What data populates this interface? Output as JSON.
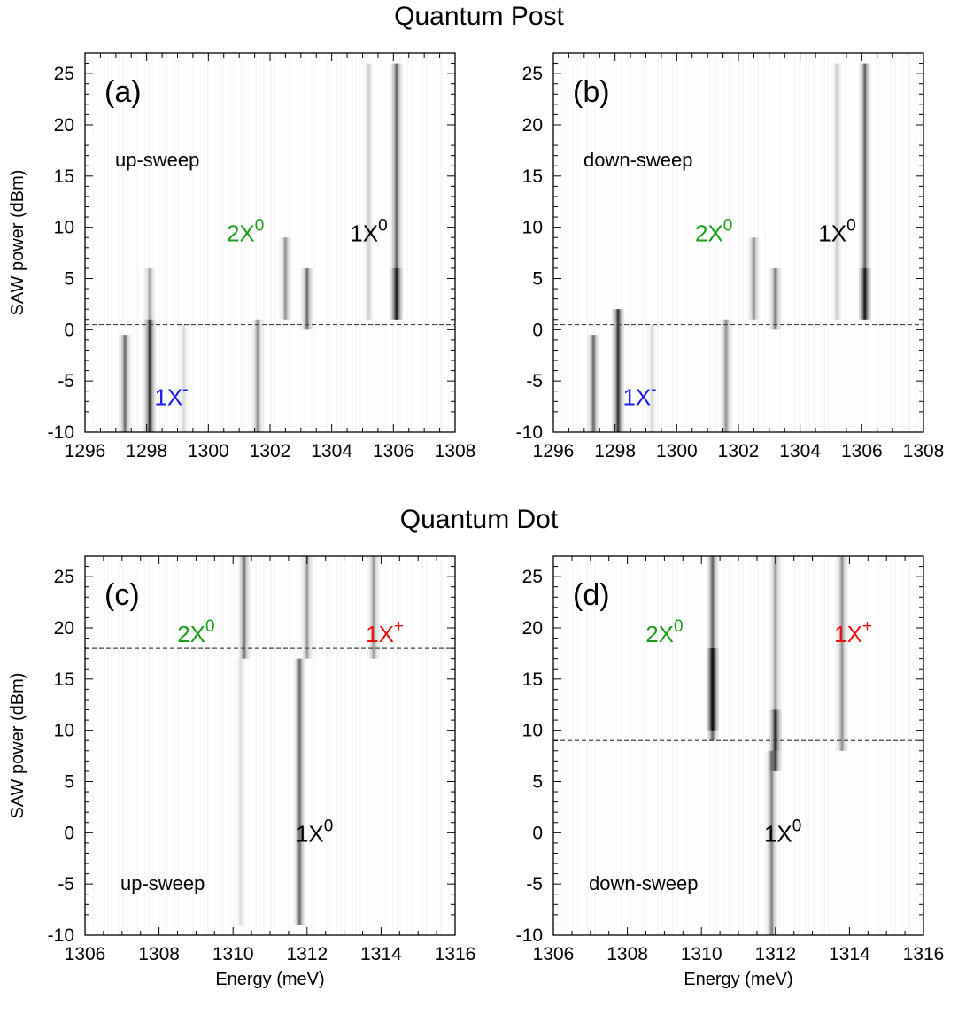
{
  "sections": {
    "top_title": "Quantum Post",
    "bottom_title": "Quantum Dot"
  },
  "colors": {
    "green": "#1a9e1a",
    "blue": "#1a1aee",
    "red": "#ee1111",
    "black": "#000000"
  },
  "chart_data": [
    {
      "type": "heatmap",
      "panel": "(a)",
      "sweep": "up-sweep",
      "ylabel": "SAW power (dBm)",
      "xlabel": "",
      "xlim": [
        1296,
        1308
      ],
      "ylim": [
        -10,
        27
      ],
      "xticks": [
        "1296",
        "1298",
        "1300",
        "1302",
        "1304",
        "1306",
        "1308"
      ],
      "yticks": [
        "-10",
        "-5",
        "0",
        "5",
        "10",
        "15",
        "20",
        "25"
      ],
      "threshold_dbm": 0.5,
      "annotations": [
        {
          "base": "2X",
          "sup": "0",
          "color": "green",
          "x": 1301.2,
          "y": 9.5
        },
        {
          "base": "1X",
          "sup": "0",
          "color": "black",
          "x": 1305.2,
          "y": 9.5
        },
        {
          "base": "1X",
          "sup": "-",
          "color": "blue",
          "x": 1298.8,
          "y": -6.5
        }
      ],
      "lines": [
        {
          "energy": 1297.3,
          "p_from": -10,
          "p_to": -0.5,
          "intensity": 0.55
        },
        {
          "energy": 1298.1,
          "p_from": -10,
          "p_to": 1,
          "intensity": 0.9
        },
        {
          "energy": 1298.1,
          "p_from": 1,
          "p_to": 6,
          "intensity": 0.3
        },
        {
          "energy": 1299.2,
          "p_from": -10,
          "p_to": 0.5,
          "intensity": 0.12
        },
        {
          "energy": 1301.6,
          "p_from": -10,
          "p_to": 1,
          "intensity": 0.38
        },
        {
          "energy": 1302.5,
          "p_from": 1,
          "p_to": 9,
          "intensity": 0.38
        },
        {
          "energy": 1303.2,
          "p_from": 0,
          "p_to": 6,
          "intensity": 0.55
        },
        {
          "energy": 1305.2,
          "p_from": 1,
          "p_to": 26,
          "intensity": 0.15
        },
        {
          "energy": 1306.1,
          "p_from": 1,
          "p_to": 26,
          "intensity": 0.6
        },
        {
          "energy": 1306.1,
          "p_from": 1,
          "p_to": 6,
          "intensity": 0.75
        }
      ]
    },
    {
      "type": "heatmap",
      "panel": "(b)",
      "sweep": "down-sweep",
      "ylabel": "",
      "xlabel": "",
      "xlim": [
        1296,
        1308
      ],
      "ylim": [
        -10,
        27
      ],
      "xticks": [
        "1296",
        "1298",
        "1300",
        "1302",
        "1304",
        "1306",
        "1308"
      ],
      "yticks": [
        "-10",
        "-5",
        "0",
        "5",
        "10",
        "15",
        "20",
        "25"
      ],
      "threshold_dbm": 0.5,
      "annotations": [
        {
          "base": "2X",
          "sup": "0",
          "color": "green",
          "x": 1301.2,
          "y": 9.5
        },
        {
          "base": "1X",
          "sup": "0",
          "color": "black",
          "x": 1305.2,
          "y": 9.5
        },
        {
          "base": "1X",
          "sup": "-",
          "color": "blue",
          "x": 1298.8,
          "y": -6.5
        }
      ],
      "lines": [
        {
          "energy": 1297.3,
          "p_from": -10,
          "p_to": -0.5,
          "intensity": 0.55
        },
        {
          "energy": 1298.1,
          "p_from": -10,
          "p_to": 2,
          "intensity": 0.9
        },
        {
          "energy": 1299.2,
          "p_from": -10,
          "p_to": 0.5,
          "intensity": 0.12
        },
        {
          "energy": 1301.6,
          "p_from": -10,
          "p_to": 1,
          "intensity": 0.38
        },
        {
          "energy": 1302.5,
          "p_from": 1,
          "p_to": 9,
          "intensity": 0.38
        },
        {
          "energy": 1303.2,
          "p_from": 0,
          "p_to": 6,
          "intensity": 0.5
        },
        {
          "energy": 1305.2,
          "p_from": 1,
          "p_to": 26,
          "intensity": 0.15
        },
        {
          "energy": 1306.1,
          "p_from": 1,
          "p_to": 26,
          "intensity": 0.6
        },
        {
          "energy": 1306.1,
          "p_from": 1,
          "p_to": 6,
          "intensity": 0.75
        }
      ]
    },
    {
      "type": "heatmap",
      "panel": "(c)",
      "sweep": "up-sweep",
      "ylabel": "SAW power (dBm)",
      "xlabel": "Energy (meV)",
      "xlim": [
        1306,
        1316
      ],
      "ylim": [
        -10,
        27
      ],
      "xticks": [
        "1306",
        "1308",
        "1310",
        "1312",
        "1314",
        "1316"
      ],
      "yticks": [
        "-10",
        "-5",
        "0",
        "5",
        "10",
        "15",
        "20",
        "25"
      ],
      "threshold_dbm": 18,
      "annotations": [
        {
          "base": "2X",
          "sup": "0",
          "color": "green",
          "x": 1309.0,
          "y": 19.5
        },
        {
          "base": "1X",
          "sup": "+",
          "color": "red",
          "x": 1314.1,
          "y": 19.5
        },
        {
          "base": "1X",
          "sup": "0",
          "color": "black",
          "x": 1312.2,
          "y": 0
        }
      ],
      "lines": [
        {
          "energy": 1310.3,
          "p_from": 17,
          "p_to": 27,
          "intensity": 0.5
        },
        {
          "energy": 1312.0,
          "p_from": 17,
          "p_to": 27,
          "intensity": 0.35
        },
        {
          "energy": 1313.8,
          "p_from": 17,
          "p_to": 27,
          "intensity": 0.35
        },
        {
          "energy": 1311.8,
          "p_from": -9,
          "p_to": 17,
          "intensity": 0.55
        },
        {
          "energy": 1310.2,
          "p_from": -9,
          "p_to": 17,
          "intensity": 0.1
        }
      ]
    },
    {
      "type": "heatmap",
      "panel": "(d)",
      "sweep": "down-sweep",
      "ylabel": "",
      "xlabel": "Energy (meV)",
      "xlim": [
        1306,
        1316
      ],
      "ylim": [
        -10,
        27
      ],
      "xticks": [
        "1306",
        "1308",
        "1310",
        "1312",
        "1314",
        "1316"
      ],
      "yticks": [
        "-10",
        "-5",
        "0",
        "5",
        "10",
        "15",
        "20",
        "25"
      ],
      "threshold_dbm": 9,
      "annotations": [
        {
          "base": "2X",
          "sup": "0",
          "color": "green",
          "x": 1309.0,
          "y": 19.5
        },
        {
          "base": "1X",
          "sup": "+",
          "color": "red",
          "x": 1314.1,
          "y": 19.5
        },
        {
          "base": "1X",
          "sup": "0",
          "color": "black",
          "x": 1312.2,
          "y": 0
        }
      ],
      "lines": [
        {
          "energy": 1310.3,
          "p_from": 9,
          "p_to": 27,
          "intensity": 0.6
        },
        {
          "energy": 1310.3,
          "p_from": 10,
          "p_to": 18,
          "intensity": 1.0
        },
        {
          "energy": 1312.0,
          "p_from": 8,
          "p_to": 27,
          "intensity": 0.35
        },
        {
          "energy": 1312.0,
          "p_from": 6,
          "p_to": 12,
          "intensity": 0.8
        },
        {
          "energy": 1313.8,
          "p_from": 8,
          "p_to": 27,
          "intensity": 0.4
        },
        {
          "energy": 1311.9,
          "p_from": -10,
          "p_to": 8,
          "intensity": 0.45
        }
      ]
    }
  ]
}
